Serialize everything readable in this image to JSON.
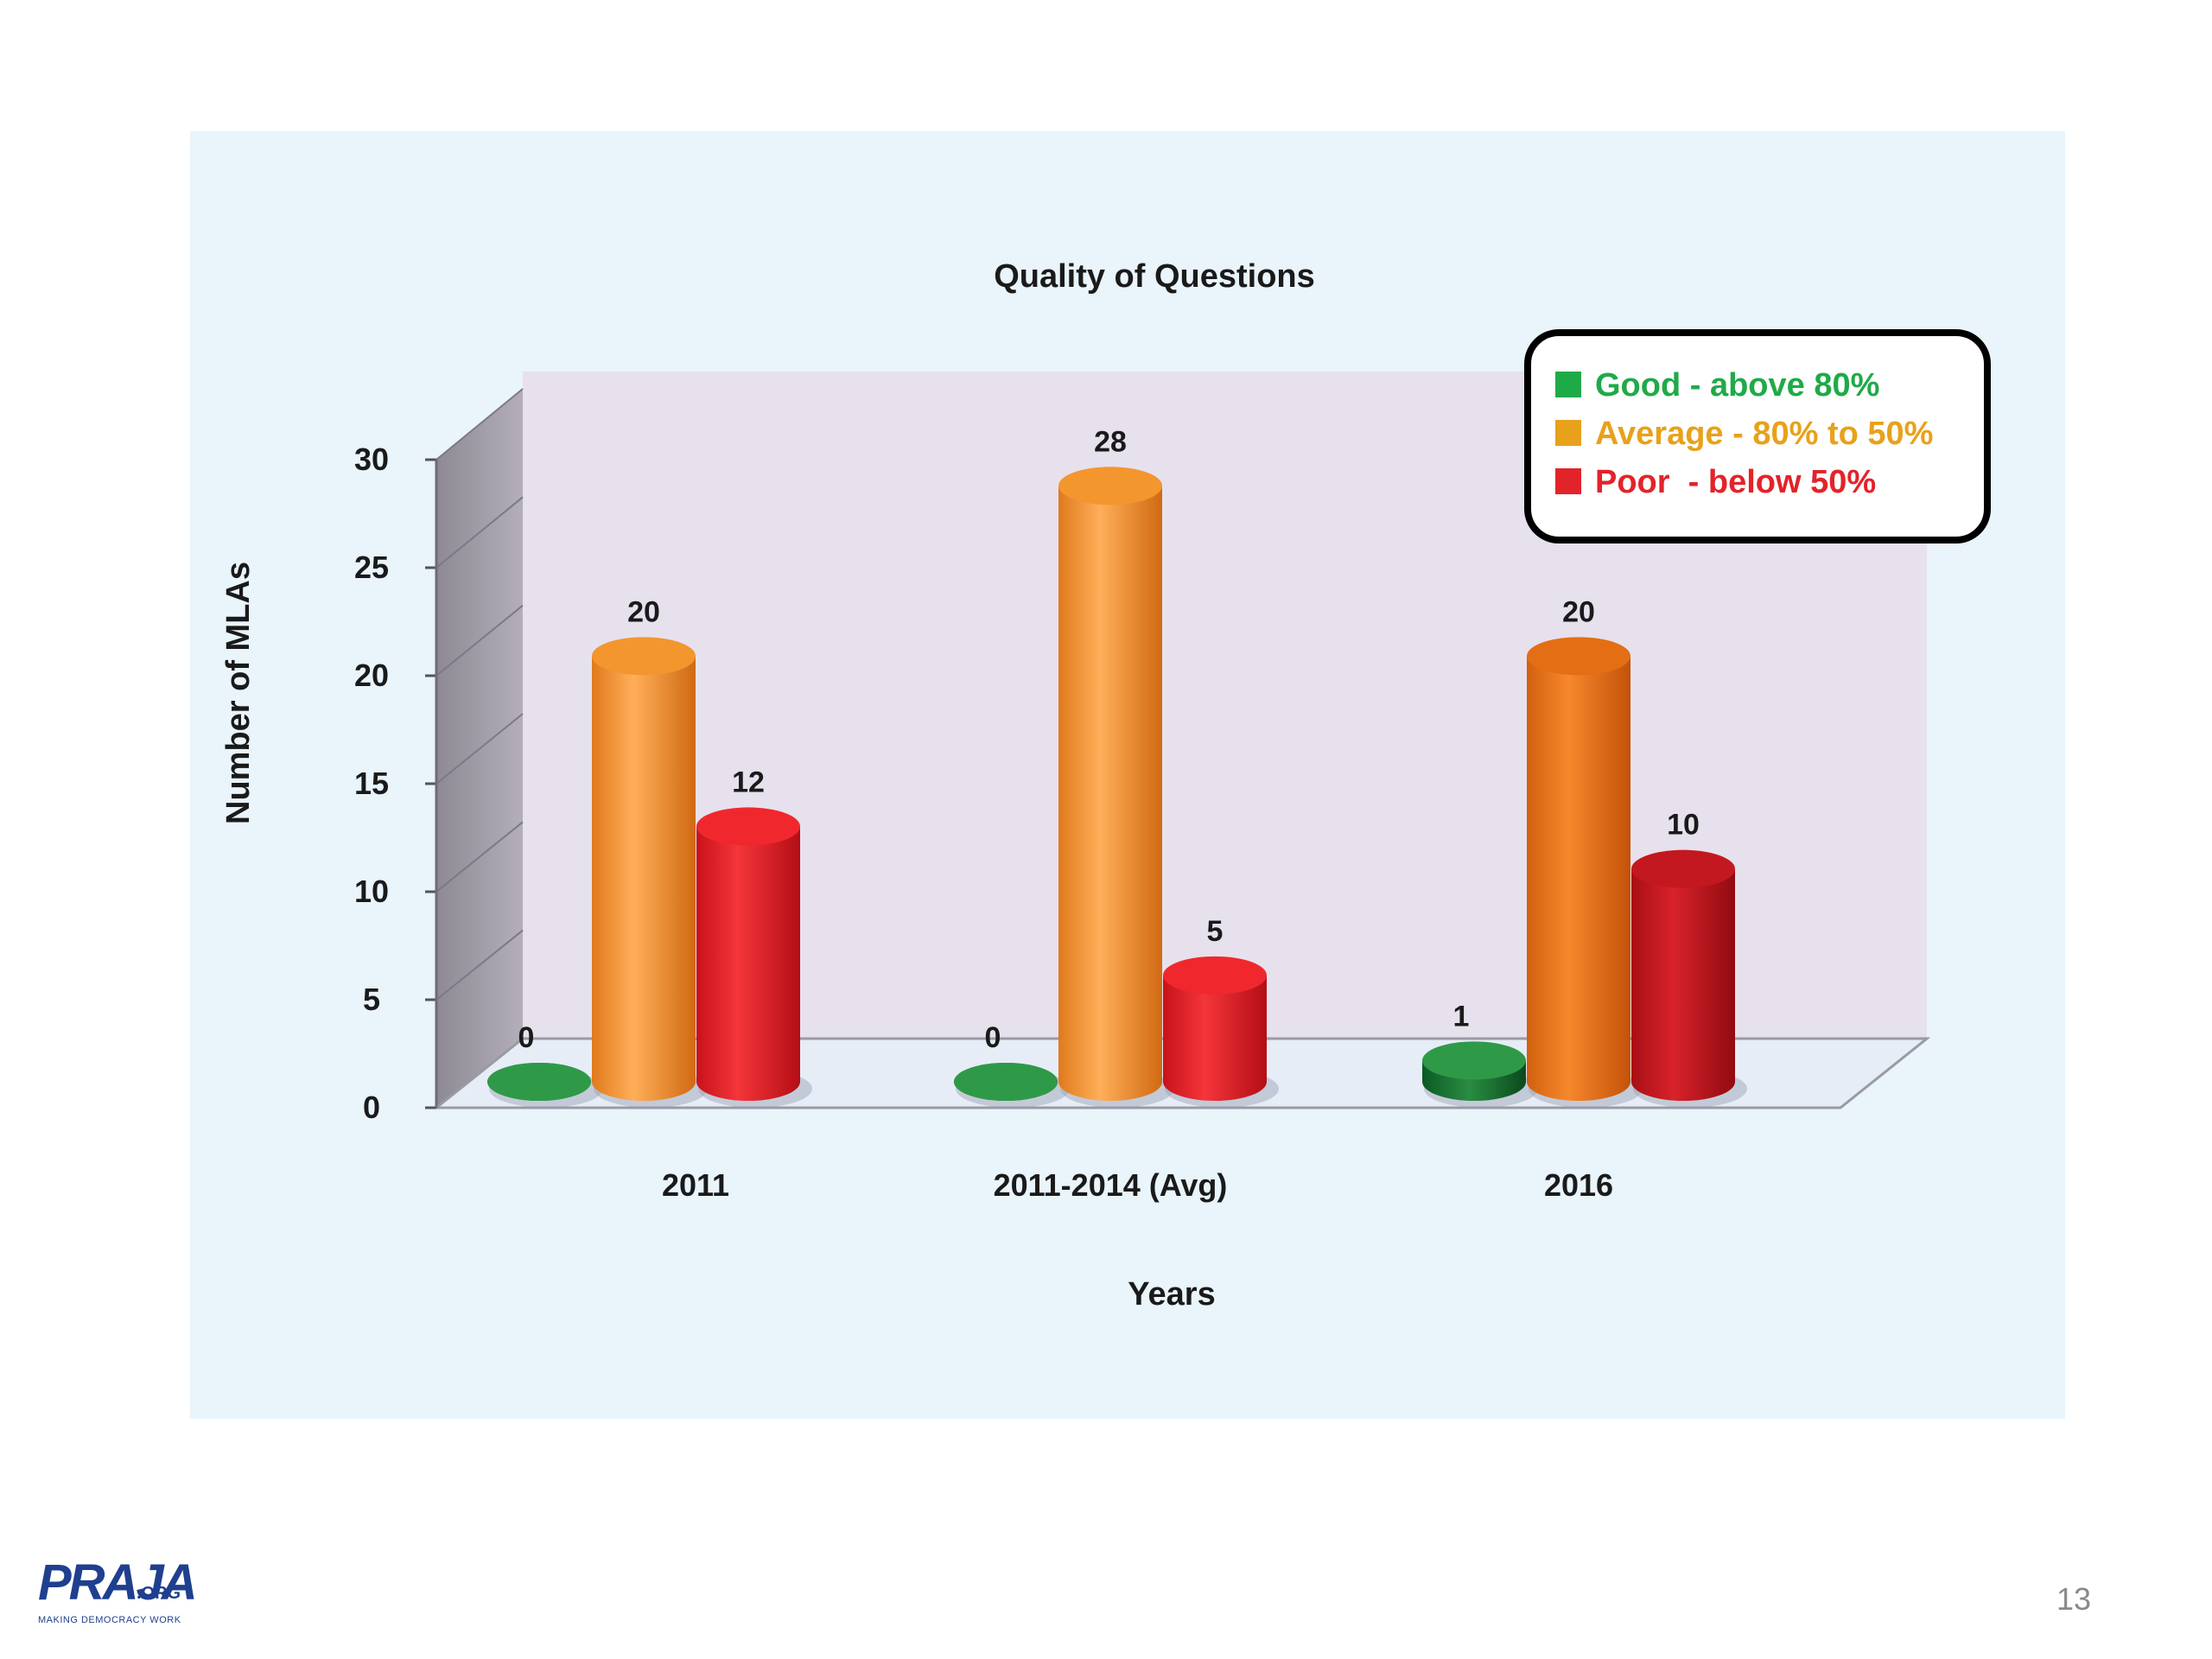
{
  "chart_data": {
    "type": "bar",
    "title": "Quality of Questions",
    "xlabel": "Years",
    "ylabel": "Number of MLAs",
    "categories": [
      "2011",
      "2011-2014 (Avg)",
      "2016"
    ],
    "ylim": [
      0,
      30
    ],
    "yticks": [
      0,
      5,
      10,
      15,
      20,
      25,
      30
    ],
    "three_d": true,
    "legend_position": "top-right",
    "series": [
      {
        "name": "Good - above 80%",
        "color": "#1faa48",
        "values": [
          0,
          0,
          1
        ]
      },
      {
        "name": "Average - 80% to 50%",
        "color": "#e8a11a",
        "values": [
          20,
          28,
          20
        ]
      },
      {
        "name": "Poor  - below 50%",
        "color": "#e3232a",
        "values": [
          12,
          5,
          10
        ]
      }
    ]
  },
  "footer": {
    "logo_text": "PRAJA",
    "logo_suffix": ".ORG",
    "logo_tagline": "MAKING DEMOCRACY WORK",
    "page_number": "13"
  }
}
